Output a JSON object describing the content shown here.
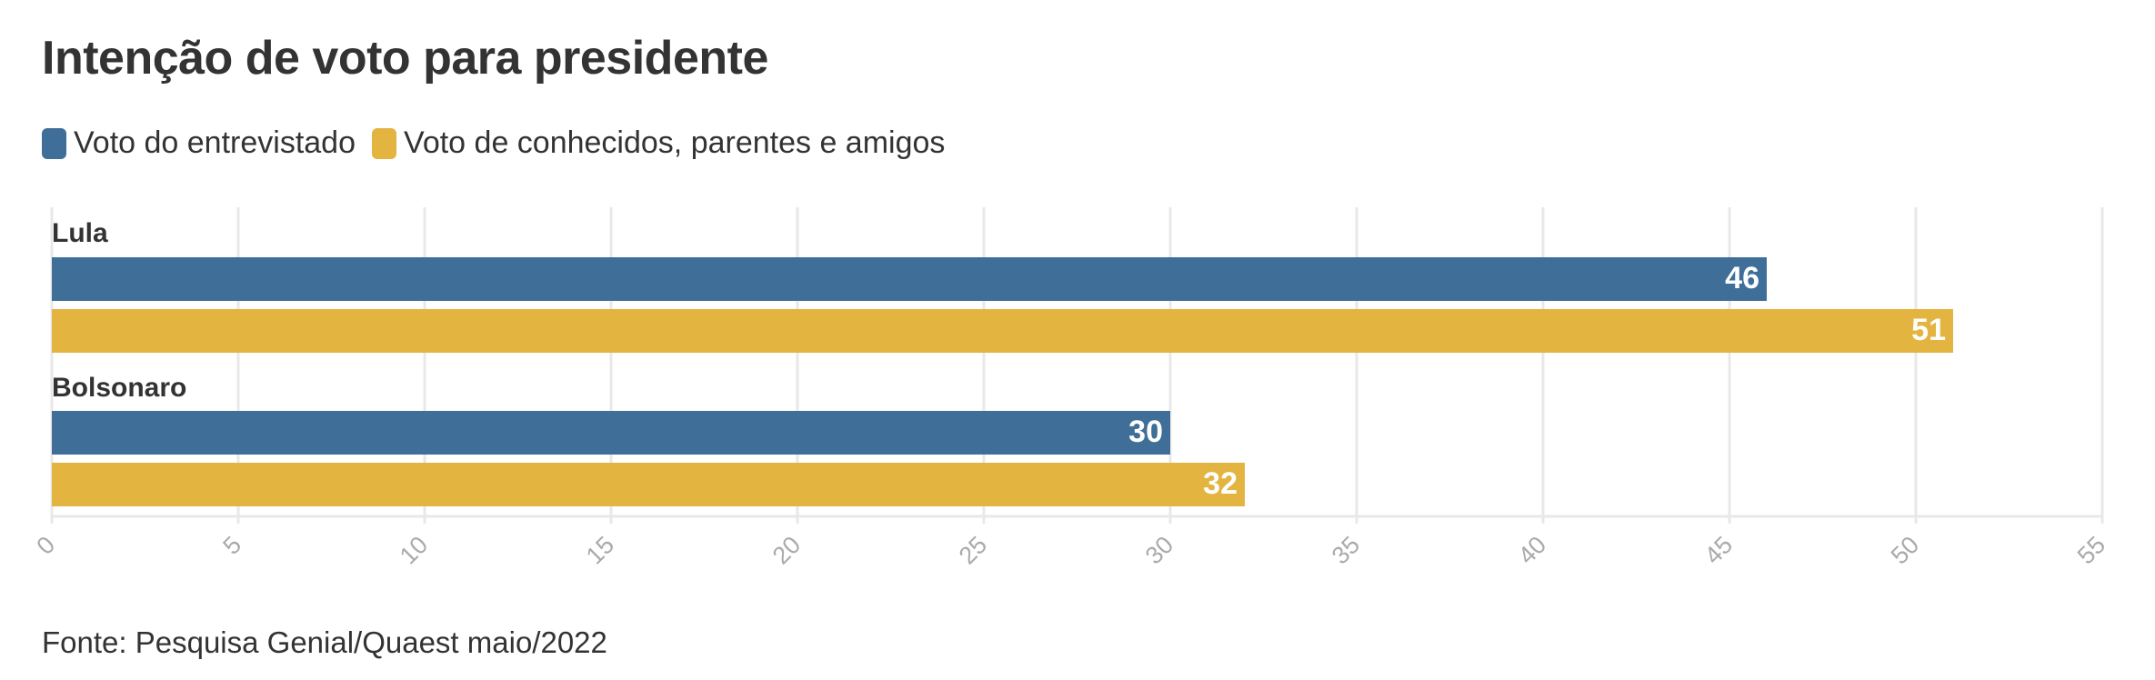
{
  "title": "Intenção de voto para presidente",
  "source": "Fonte: Pesquisa Genial/Quaest maio/2022",
  "colors": {
    "series1": "#3f6f99",
    "series2": "#e3b43f",
    "grid": "#e8e8e8",
    "tick": "#aaaaaa",
    "text": "#333333",
    "value_label": "#ffffff"
  },
  "chart_data": {
    "type": "bar",
    "orientation": "horizontal",
    "title": "Intenção de voto para presidente",
    "categories": [
      "Lula",
      "Bolsonaro"
    ],
    "series": [
      {
        "name": "Voto do entrevistado",
        "values": [
          46,
          30
        ]
      },
      {
        "name": "Voto de conhecidos, parentes e amigos",
        "values": [
          51,
          32
        ]
      }
    ],
    "xlim": [
      0,
      55
    ],
    "xticks": [
      0,
      5,
      10,
      15,
      20,
      25,
      30,
      35,
      40,
      45,
      50,
      55
    ],
    "xlabel": "",
    "ylabel": "",
    "grid": true,
    "legend": "top-left",
    "data_labels": true
  }
}
